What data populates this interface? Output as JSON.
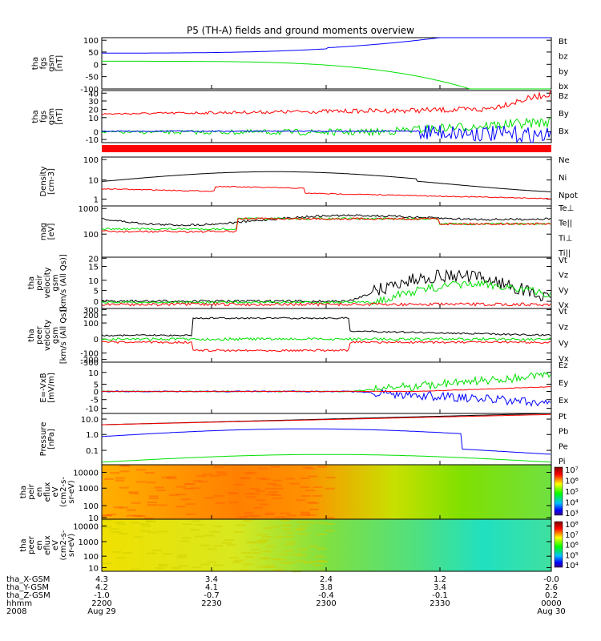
{
  "title": "P5 (TH-A) fields and ground moments overview",
  "colors": {
    "black": "#000000",
    "red": "#ff0000",
    "green": "#00e000",
    "blue": "#0000ff"
  },
  "chart_data": [
    {
      "type": "line",
      "name": "fgs_gsm",
      "ylabel": [
        "tha",
        "fgs",
        "gsm",
        "[nT]"
      ],
      "ylim": [
        -100,
        100
      ],
      "ticks": [
        "100",
        "50",
        "0",
        "-50",
        "-100"
      ],
      "legend": [
        {
          "text": "Bt",
          "color": "black"
        },
        {
          "text": "bz",
          "color": "red"
        },
        {
          "text": "by",
          "color": "green"
        },
        {
          "text": "bx",
          "color": "blue"
        }
      ]
    },
    {
      "type": "line",
      "name": "fgs_gsm_zoom",
      "ylabel": [
        "tha",
        "fgs",
        "gsm",
        "[nT]"
      ],
      "ylim": [
        -15,
        40
      ],
      "ticks": [
        "40",
        "30",
        "20",
        "10",
        "0",
        "-10"
      ],
      "legend": [
        {
          "text": "Bz",
          "color": "red"
        },
        {
          "text": "By",
          "color": "green"
        },
        {
          "text": "Bx",
          "color": "blue"
        }
      ]
    },
    {
      "type": "line",
      "name": "density",
      "ylabel": [
        "Density",
        "[cm-3]"
      ],
      "log": true,
      "ticks": [
        "100",
        "10",
        "1"
      ],
      "legend": [
        {
          "text": "Ne",
          "color": "red"
        },
        {
          "text": "Ni",
          "color": "black"
        },
        {
          "text": "Npot",
          "color": "blue"
        }
      ]
    },
    {
      "type": "line",
      "name": "temperature",
      "ylabel": [
        "mag",
        "[eV]"
      ],
      "log": true,
      "ticks": [
        "1000",
        "100"
      ],
      "legend": [
        {
          "text": "Te⊥",
          "color": "red"
        },
        {
          "text": "Te||",
          "color": "black"
        },
        {
          "text": "Ti⊥",
          "color": "blue"
        },
        {
          "text": "Ti||",
          "color": "green"
        }
      ]
    },
    {
      "type": "line",
      "name": "peir_velocity",
      "ylabel": [
        "tha",
        "peir",
        "velocity",
        "gsm",
        "[km/s (All Qs)]"
      ],
      "ylim": [
        -3,
        20
      ],
      "ticks": [
        "20",
        "15",
        "10",
        "5",
        "0"
      ],
      "legend": [
        {
          "text": "Vt",
          "color": "black"
        },
        {
          "text": "Vz",
          "color": "red"
        },
        {
          "text": "Vy",
          "color": "green"
        },
        {
          "text": "Vx",
          "color": "blue"
        }
      ]
    },
    {
      "type": "line",
      "name": "peer_velocity",
      "ylabel": [
        "tha",
        "peer",
        "velocity",
        "gsm",
        "[km/s (All Qs)]"
      ],
      "ylim": [
        -300,
        300
      ],
      "ticks": [
        "300",
        "200",
        "100",
        "0",
        "-100",
        "-200",
        "-300"
      ],
      "legend": [
        {
          "text": "Vt",
          "color": "black"
        },
        {
          "text": "Vz",
          "color": "red"
        },
        {
          "text": "Vy",
          "color": "green"
        },
        {
          "text": "Vx",
          "color": "blue"
        }
      ]
    },
    {
      "type": "line",
      "name": "efield",
      "ylabel": [
        "E=-VxB",
        "[mV/m]"
      ],
      "ylim": [
        -15,
        15
      ],
      "ticks": [
        "10",
        "5",
        "0",
        "-5",
        "-10"
      ],
      "legend": [
        {
          "text": "Ez",
          "color": "red"
        },
        {
          "text": "Ey",
          "color": "green"
        },
        {
          "text": "Ex",
          "color": "blue"
        }
      ]
    },
    {
      "type": "line",
      "name": "pressure",
      "ylabel": [
        "Pressure",
        "[nPa]"
      ],
      "log": true,
      "ticks": [
        "10.0",
        "1.0",
        "0.1"
      ],
      "legend": [
        {
          "text": "Pt",
          "color": "black"
        },
        {
          "text": "Pb",
          "color": "red"
        },
        {
          "text": "Pe",
          "color": "green"
        },
        {
          "text": "Pi",
          "color": "blue"
        }
      ]
    },
    {
      "type": "heatmap",
      "name": "peir_en_eflux",
      "ylabel": [
        "tha",
        "peir",
        "en",
        "eflux",
        "eV",
        "(cm2-s-",
        "sr-eV)"
      ],
      "ticks": [
        "10000",
        "1000",
        "100",
        "10"
      ],
      "colorbar": [
        "10⁷",
        "10⁶",
        "10⁵",
        "10⁴",
        "10³"
      ]
    },
    {
      "type": "heatmap",
      "name": "peer_en_eflux",
      "ylabel": [
        "tha",
        "peer",
        "en",
        "eflux",
        "eV",
        "(cm2-s-",
        "sr-eV)"
      ],
      "ticks": [
        "10000",
        "1000",
        "100",
        "10"
      ],
      "colorbar": [
        "10⁸",
        "10⁷",
        "10⁶",
        "10⁵",
        "10⁴"
      ]
    }
  ],
  "xaxis": {
    "rows": [
      {
        "label": "tha_X-GSM",
        "values": [
          "4.3",
          "3.4",
          "2.4",
          "1.2",
          "-0.0"
        ]
      },
      {
        "label": "tha_Y-GSM",
        "values": [
          "4.2",
          "4.1",
          "3.8",
          "3.4",
          "2.6"
        ]
      },
      {
        "label": "tha_Z-GSM",
        "values": [
          "-1.0",
          "-0.7",
          "-0.4",
          "-0.1",
          "0.2"
        ]
      },
      {
        "label": "hhmm",
        "values": [
          "2200",
          "2230",
          "2300",
          "2330",
          "0000"
        ]
      },
      {
        "label": "2008",
        "values": [
          "Aug 29",
          "",
          "",
          "",
          "Aug 30"
        ]
      }
    ]
  }
}
